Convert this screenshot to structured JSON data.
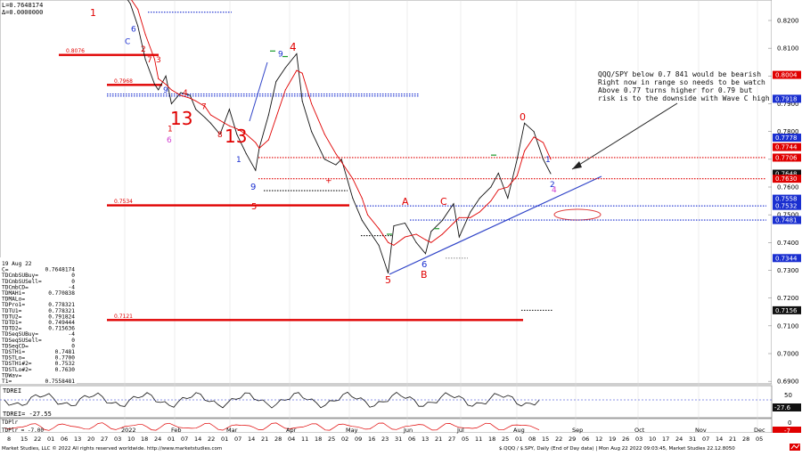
{
  "header": {
    "line1": "L=0.7648174",
    "line2": "Δ=0.0000000"
  },
  "annotation": {
    "text": [
      "QQQ/SPY below 0.7 841 would be bearish",
      "Right now in range so needs to be watch",
      "Above 0.77 turns higher for 0.79 but",
      "risk is to the downside with Wave C high"
    ]
  },
  "panel_main": {
    "yticks": [
      "0.8200",
      "0.8100",
      "0.8000",
      "0.7900",
      "0.7800",
      "0.7700",
      "0.7600",
      "0.7500",
      "0.7400",
      "0.7300",
      "0.7200",
      "0.7100",
      "0.7000",
      "0.6900"
    ],
    "price_tags": [
      {
        "value": "0.8004",
        "color": "#e00000"
      },
      {
        "value": "0.7918",
        "color": "#1a2fd0"
      },
      {
        "value": "0.7778",
        "color": "#1a2fd0"
      },
      {
        "value": "0.7744",
        "color": "#e00000"
      },
      {
        "value": "0.7706",
        "color": "#e00000"
      },
      {
        "value": "0.7648",
        "color": "#111111"
      },
      {
        "value": "0.7630",
        "color": "#e00000"
      },
      {
        "value": "0.7558",
        "color": "#1a2fd0"
      },
      {
        "value": "0.7532",
        "color": "#1a2fd0"
      },
      {
        "value": "0.7481",
        "color": "#1a2fd0"
      },
      {
        "value": "0.7344",
        "color": "#1a2fd0"
      },
      {
        "value": "0.7156",
        "color": "#111111"
      }
    ],
    "levels": [
      {
        "label": "0.8076",
        "value": 0.8076
      },
      {
        "label": "0.7968",
        "value": 0.7968
      },
      {
        "label": "0.7534",
        "value": 0.7534
      },
      {
        "label": "0.7121",
        "value": 0.7121
      }
    ],
    "wave_labels": [
      "1",
      "4",
      "13",
      "13",
      "5",
      "0",
      "A",
      "C",
      "B",
      "5",
      "2",
      "3",
      "4",
      "9",
      "6"
    ]
  },
  "info_table": [
    [
      "19 Aug 22",
      ""
    ],
    [
      "C=",
      "0.7648174"
    ],
    [
      "TDCmbSUBuy=",
      "0"
    ],
    [
      "TDCmbSUSell=",
      "0"
    ],
    [
      "TDCmbCD=",
      "-4"
    ],
    [
      "TDMAHi=",
      "0.770838"
    ],
    [
      "TDMALo=",
      ""
    ],
    [
      "TDPro1=",
      "0.778321"
    ],
    [
      "TDTU1=",
      "0.778321"
    ],
    [
      "TDTU2=",
      "0.791824"
    ],
    [
      "TDTD1=",
      "0.749444"
    ],
    [
      "TDTD2=",
      "0.715636"
    ],
    [
      "TDSeqSUBuy=",
      "-4"
    ],
    [
      "TDSeqSUSell=",
      "0"
    ],
    [
      "TDSeqCD=",
      "0"
    ],
    [
      "TDSTHi=",
      "0.7481"
    ],
    [
      "TDSTLo=",
      "0.7700"
    ],
    [
      "TDSTHi#2=",
      "0.7532"
    ],
    [
      "TDSTLo#2=",
      "0.7630"
    ],
    [
      "TDWav=",
      ""
    ],
    [
      "T1=",
      "0.7558481"
    ]
  ],
  "panel_tdrei": {
    "title": "TDREI",
    "readout": "TDREI= -27.55",
    "ytick": "50",
    "tag": "-27.6"
  },
  "panel_tdpir": {
    "title": "TDPlr",
    "readout": "TDPlr = -7.00",
    "ytick": "0",
    "tag": "-7"
  },
  "x_axis": {
    "months": [
      "2022",
      "Feb",
      "Mar",
      "Apr",
      "May",
      "Jun",
      "Jul",
      "Aug",
      "Sep",
      "Oct",
      "Nov",
      "Dec"
    ],
    "days": [
      "8",
      "15",
      "22",
      "01",
      "06",
      "13",
      "20",
      "27",
      "03",
      "10",
      "18",
      "24",
      "01",
      "07",
      "14",
      "22",
      "01",
      "07",
      "14",
      "21",
      "28",
      "04",
      "11",
      "18",
      "25",
      "02",
      "09",
      "16",
      "23",
      "31",
      "06",
      "13",
      "21",
      "27",
      "05",
      "11",
      "18",
      "25",
      "01",
      "08",
      "15",
      "22",
      "29",
      "06",
      "12",
      "19",
      "26",
      "03",
      "10",
      "17",
      "24",
      "31",
      "07",
      "14",
      "21",
      "28",
      "05"
    ]
  },
  "footer": {
    "left": "Market Studies, LLC © 2022 All rights reserved worldwide. http://www.marketstudies.com",
    "right": "$.QQQ / $.SPY, Daily (End of Day data) | Mon Aug 22 2022 09:03:45, Market Studies 22.12.8050"
  },
  "chart_data": {
    "type": "line",
    "title": "",
    "xlabel": "",
    "ylabel": "",
    "ylim": [
      0.6885,
      0.831
    ],
    "x": [
      "2022-01-03",
      "2022-01-06",
      "2022-01-10",
      "2022-01-14",
      "2022-01-19",
      "2022-01-21",
      "2022-01-25",
      "2022-01-28",
      "2022-02-02",
      "2022-02-07",
      "2022-02-10",
      "2022-02-15",
      "2022-02-18",
      "2022-02-23",
      "2022-02-28",
      "2022-03-04",
      "2022-03-09",
      "2022-03-14",
      "2022-03-16",
      "2022-03-21",
      "2022-03-25",
      "2022-03-30",
      "2022-04-05",
      "2022-04-08",
      "2022-04-13",
      "2022-04-20",
      "2022-04-26",
      "2022-04-29",
      "2022-05-05",
      "2022-05-10",
      "2022-05-13",
      "2022-05-19",
      "2022-05-24",
      "2022-05-27",
      "2022-06-02",
      "2022-06-08",
      "2022-06-13",
      "2022-06-16",
      "2022-06-22",
      "2022-06-28",
      "2022-07-01",
      "2022-07-07",
      "2022-07-12",
      "2022-07-18",
      "2022-07-22",
      "2022-07-27",
      "2022-08-01",
      "2022-08-05",
      "2022-08-10",
      "2022-08-15",
      "2022-08-19"
    ],
    "series": [
      {
        "values": [
          0.829,
          0.826,
          0.818,
          0.806,
          0.797,
          0.795,
          0.8,
          0.79,
          0.794,
          0.793,
          0.788,
          0.785,
          0.783,
          0.779,
          0.788,
          0.779,
          0.772,
          0.766,
          0.774,
          0.786,
          0.798,
          0.803,
          0.808,
          0.791,
          0.78,
          0.77,
          0.768,
          0.77,
          0.756,
          0.748,
          0.745,
          0.739,
          0.729,
          0.746,
          0.747,
          0.74,
          0.736,
          0.744,
          0.748,
          0.754,
          0.742,
          0.751,
          0.756,
          0.76,
          0.765,
          0.756,
          0.77,
          0.783,
          0.78,
          0.77,
          0.7648
        ],
        "color": "#111111"
      },
      {
        "values": [
          0.83,
          0.828,
          0.824,
          0.815,
          0.806,
          0.799,
          0.797,
          0.795,
          0.793,
          0.792,
          0.791,
          0.789,
          0.786,
          0.784,
          0.782,
          0.781,
          0.779,
          0.776,
          0.774,
          0.777,
          0.785,
          0.795,
          0.802,
          0.801,
          0.79,
          0.779,
          0.772,
          0.769,
          0.763,
          0.756,
          0.75,
          0.745,
          0.74,
          0.739,
          0.742,
          0.743,
          0.741,
          0.74,
          0.743,
          0.747,
          0.749,
          0.749,
          0.751,
          0.755,
          0.759,
          0.76,
          0.764,
          0.773,
          0.778,
          0.776,
          0.77
        ],
        "color": "#e00000"
      }
    ]
  }
}
